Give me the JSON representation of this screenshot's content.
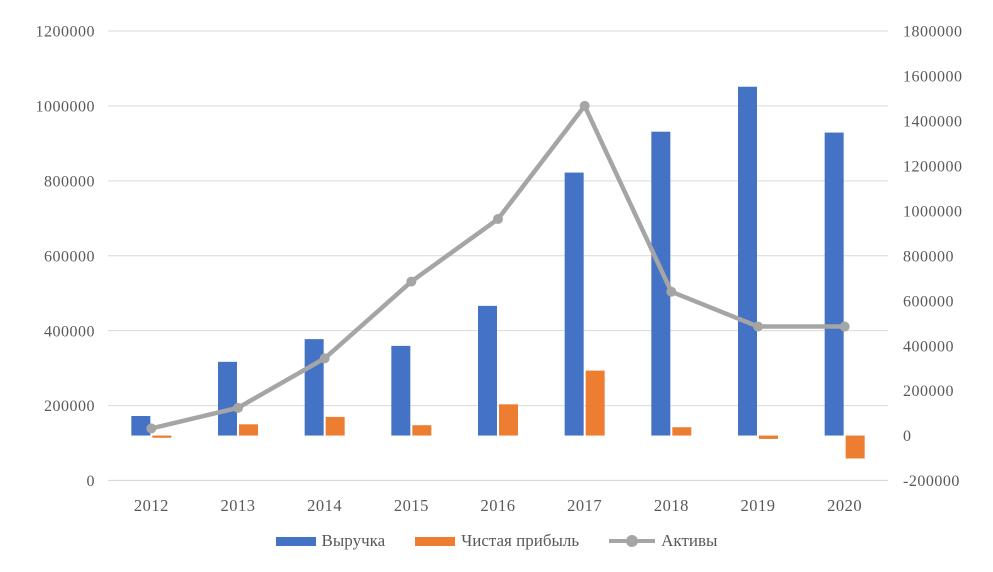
{
  "chart_data": {
    "type": "bar",
    "subtype": "combo-bar-line-dual-axis",
    "categories": [
      "2012",
      "2013",
      "2014",
      "2015",
      "2016",
      "2017",
      "2018",
      "2019",
      "2020"
    ],
    "series": [
      {
        "name": "Выручка",
        "type": "bar",
        "axis": "secondary",
        "color": "#4472C4",
        "values": [
          87000,
          328000,
          429000,
          399000,
          577000,
          1170000,
          1352000,
          1552000,
          1348000
        ]
      },
      {
        "name": "Чистая прибыль",
        "type": "bar",
        "axis": "secondary",
        "color": "#ED7D31",
        "values": [
          -10000,
          50000,
          83000,
          46000,
          139000,
          289000,
          37000,
          -15000,
          -102000
        ]
      },
      {
        "name": "Активы",
        "type": "line",
        "axis": "primary",
        "color": "#A5A5A5",
        "values": [
          139000,
          194000,
          326000,
          531000,
          698000,
          1000000,
          504000,
          411000,
          411000
        ]
      }
    ],
    "axes": {
      "primary": {
        "side": "left",
        "min": 0,
        "max": 1200000,
        "step": 200000,
        "tick_labels": [
          "0",
          "200000",
          "400000",
          "600000",
          "800000",
          "1000000",
          "1200000"
        ]
      },
      "secondary": {
        "side": "right",
        "min": -200000,
        "max": 1800000,
        "step": 200000,
        "tick_labels": [
          "-200000",
          "0",
          "200000",
          "400000",
          "600000",
          "800000",
          "1000000",
          "1200000",
          "1400000",
          "1600000",
          "1800000"
        ]
      }
    },
    "title": "",
    "xlabel": "",
    "ylabel": "",
    "grid": true,
    "gridlines_follow": "primary",
    "legend_position": "bottom"
  },
  "legend": {
    "items": [
      {
        "label": "Выручка",
        "marker": "rect",
        "color": "#4472C4"
      },
      {
        "label": "Чистая прибыль",
        "marker": "rect",
        "color": "#ED7D31"
      },
      {
        "label": "Активы",
        "marker": "line-dot",
        "color": "#A5A5A5"
      }
    ]
  },
  "colors": {
    "bar_revenue": "#4472C4",
    "bar_profit": "#ED7D31",
    "line_assets": "#A5A5A5",
    "tick_text": "#595959",
    "gridline": "#D9D9D9",
    "axis_line": "#D9D9D9",
    "background": "#FFFFFF"
  }
}
